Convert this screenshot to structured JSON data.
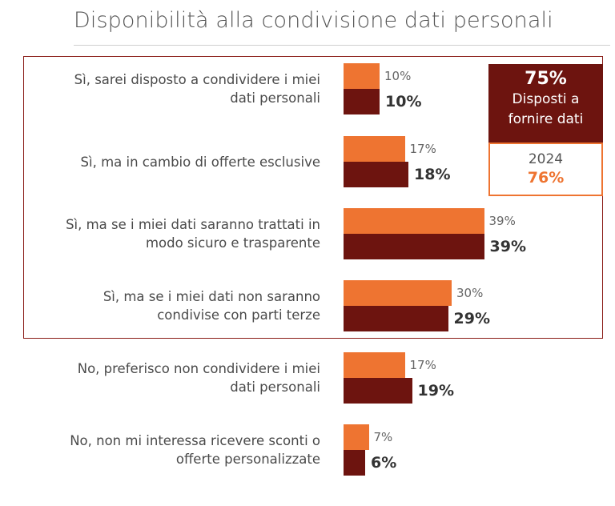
{
  "title": "Disponibilità alla condivisione dati personali",
  "kpi": {
    "value": "75%",
    "line1": "Disposti a",
    "line2": "fornire dati",
    "prev_year": "2024",
    "prev_value": "76%"
  },
  "colors": {
    "previous": "#ee7431",
    "current": "#6d140f",
    "box": "#8a1c17"
  },
  "chart_data": {
    "type": "bar",
    "orientation": "horizontal",
    "title": "Disponibilità alla condivisione dati personali",
    "categories": [
      [
        "Sì, sarei disposto a condividere i miei",
        "dati personali"
      ],
      [
        "Sì, ma in cambio di offerte esclusive"
      ],
      [
        "Sì, ma se i miei dati saranno trattati in",
        "modo sicuro e trasparente"
      ],
      [
        "Sì, ma se i miei dati non saranno",
        "condivise con parti terze"
      ],
      [
        "No, preferisco non condividere i miei",
        "dati personali"
      ],
      [
        "No, non mi interessa ricevere sconti o",
        "offerte personalizzate"
      ]
    ],
    "series": [
      {
        "name": "2024",
        "values": [
          10,
          17,
          39,
          30,
          17,
          7
        ],
        "labels": [
          "10%",
          "17%",
          "39%",
          "30%",
          "17%",
          "7%"
        ]
      },
      {
        "name": "current",
        "values": [
          10,
          18,
          39,
          29,
          19,
          6
        ],
        "labels": [
          "10%",
          "18%",
          "39%",
          "29%",
          "19%",
          "6%"
        ]
      }
    ],
    "xlim": [
      0,
      40
    ],
    "grid": false,
    "legend": "none"
  }
}
